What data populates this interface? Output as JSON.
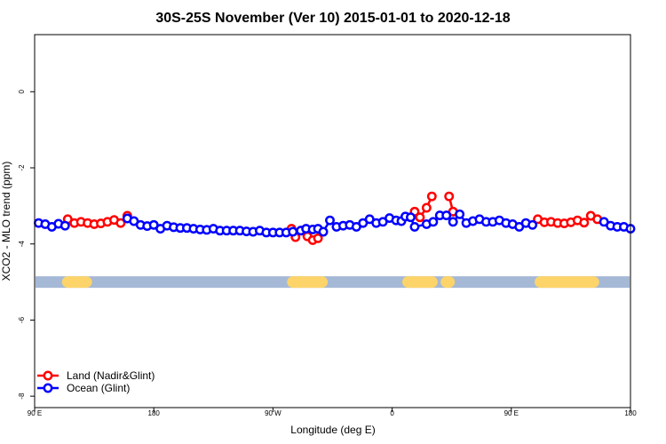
{
  "chart_data": {
    "type": "line",
    "title": "30S-25S November (Ver 10)   2015-01-01 to 2020-12-18",
    "xlabel": "Longitude (deg E)",
    "ylabel": "XCO2 - MLO trend (ppm)",
    "xlim": [
      90,
      540
    ],
    "ylim": [
      -8.3,
      1.5
    ],
    "x_ticks": [
      {
        "value": 90,
        "label": "90 E"
      },
      {
        "value": 180,
        "label": "180"
      },
      {
        "value": 270,
        "label": "90 W"
      },
      {
        "value": 360,
        "label": "0"
      },
      {
        "value": 450,
        "label": "90 E"
      },
      {
        "value": 540,
        "label": "180"
      }
    ],
    "y_ticks": [
      0,
      -2,
      -4,
      -6,
      -8
    ],
    "grid": false,
    "legend_position": "bottom-left",
    "land_ocean_bar": {
      "y": -5.0,
      "ocean_color": "#a5b8d6",
      "land_color": "#fcd46a",
      "land_segments": [
        [
          115,
          129
        ],
        [
          285,
          307
        ],
        [
          372,
          390
        ],
        [
          401,
          403
        ],
        [
          472,
          512
        ]
      ]
    },
    "series": [
      {
        "name": "Land (Nadir&Glint)",
        "color": "#ff0000",
        "x": [
          115,
          120,
          125,
          130,
          135,
          140,
          145,
          150,
          155,
          160,
          284,
          287,
          292,
          296,
          300,
          304,
          377,
          381,
          386,
          390,
          403,
          406,
          470,
          475,
          480,
          485,
          490,
          495,
          500,
          505,
          510,
          515
        ],
        "y": [
          -3.35,
          -3.45,
          -3.42,
          -3.45,
          -3.48,
          -3.46,
          -3.42,
          -3.37,
          -3.45,
          -3.26,
          -3.6,
          -3.82,
          -3.65,
          -3.8,
          -3.9,
          -3.85,
          -3.15,
          -3.3,
          -3.05,
          -2.75,
          -2.75,
          -3.15,
          -3.35,
          -3.43,
          -3.42,
          -3.45,
          -3.46,
          -3.43,
          -3.38,
          -3.44,
          -3.26,
          -3.35
        ]
      },
      {
        "name": "Ocean (Glint)",
        "color": "#0000ff",
        "x": [
          93,
          98,
          103,
          108,
          113,
          160,
          165,
          170,
          175,
          180,
          185,
          190,
          195,
          200,
          205,
          210,
          215,
          220,
          225,
          230,
          235,
          240,
          245,
          250,
          255,
          260,
          265,
          270,
          275,
          280,
          285,
          291,
          295,
          300,
          304,
          308,
          313,
          318,
          323,
          328,
          333,
          338,
          343,
          348,
          353,
          358,
          363,
          367,
          370,
          374,
          377,
          386,
          391,
          396,
          401,
          406,
          411,
          416,
          421,
          426,
          431,
          436,
          441,
          446,
          451,
          456,
          461,
          466,
          520,
          525,
          530,
          535,
          540
        ],
        "y": [
          -3.45,
          -3.48,
          -3.55,
          -3.47,
          -3.52,
          -3.33,
          -3.4,
          -3.5,
          -3.53,
          -3.5,
          -3.6,
          -3.52,
          -3.56,
          -3.58,
          -3.58,
          -3.6,
          -3.62,
          -3.63,
          -3.6,
          -3.65,
          -3.65,
          -3.65,
          -3.65,
          -3.67,
          -3.68,
          -3.65,
          -3.7,
          -3.7,
          -3.7,
          -3.7,
          -3.68,
          -3.65,
          -3.6,
          -3.62,
          -3.6,
          -3.68,
          -3.38,
          -3.55,
          -3.52,
          -3.5,
          -3.55,
          -3.45,
          -3.35,
          -3.45,
          -3.42,
          -3.32,
          -3.38,
          -3.4,
          -3.28,
          -3.3,
          -3.55,
          -3.48,
          -3.42,
          -3.25,
          -3.25,
          -3.42,
          -3.22,
          -3.45,
          -3.4,
          -3.35,
          -3.42,
          -3.42,
          -3.38,
          -3.45,
          -3.48,
          -3.55,
          -3.45,
          -3.5,
          -3.42,
          -3.52,
          -3.55,
          -3.55,
          -3.6
        ]
      }
    ]
  }
}
